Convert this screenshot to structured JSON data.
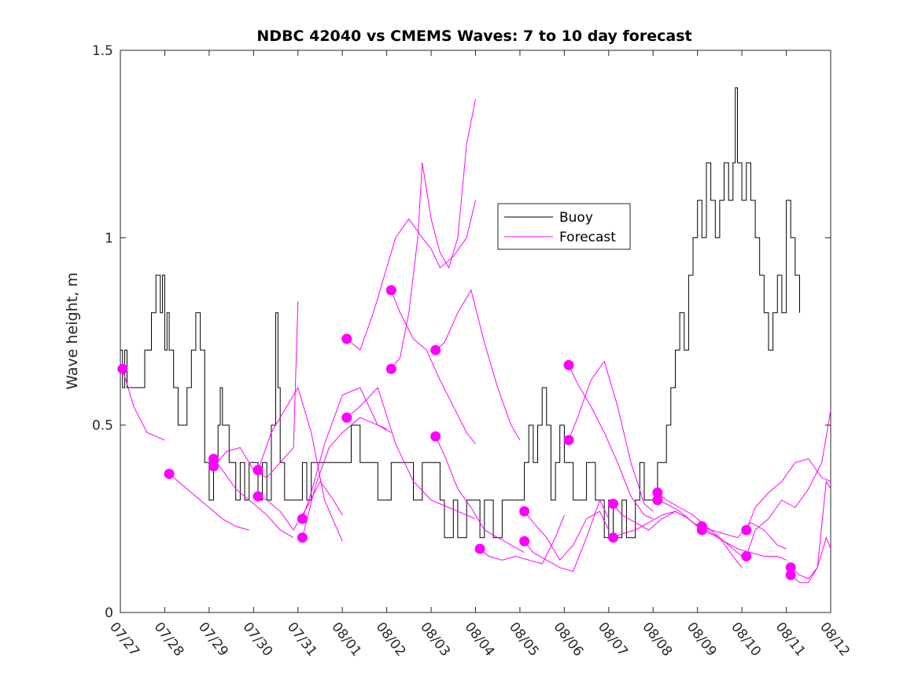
{
  "chart_data": {
    "type": "line",
    "title": "NDBC 42040 vs CMEMS Waves: 7 to 10 day forecast",
    "xlabel": "",
    "ylabel": "Wave height, m",
    "ylim": [
      0,
      1.5
    ],
    "xlim": [
      0,
      16
    ],
    "x_unit": "days from 07/27",
    "x_ticks": [
      0,
      1,
      2,
      3,
      4,
      5,
      6,
      7,
      8,
      9,
      10,
      11,
      12,
      13,
      14,
      15,
      16
    ],
    "x_tick_labels": [
      "07/27",
      "07/28",
      "07/29",
      "07/30",
      "07/31",
      "08/01",
      "08/02",
      "08/03",
      "08/04",
      "08/05",
      "08/06",
      "08/07",
      "08/08",
      "08/09",
      "08/10",
      "08/11",
      "08/12"
    ],
    "y_ticks": [
      0,
      0.5,
      1,
      1.5
    ],
    "y_tick_labels": [
      "0",
      "0.5",
      "1",
      "1.5"
    ],
    "grid": false,
    "legend": {
      "position": "top-center",
      "entries": [
        "Buoy",
        "Forecast"
      ]
    },
    "colors": {
      "buoy": "#000000",
      "forecast": "#ff00ff",
      "axis": "#262626"
    },
    "series": [
      {
        "name": "Buoy",
        "style": "step",
        "x": [
          0,
          0.05,
          0.1,
          0.15,
          0.2,
          0.4,
          0.5,
          0.55,
          0.6,
          0.7,
          0.8,
          0.9,
          0.95,
          1.0,
          1.05,
          1.1,
          1.2,
          1.3,
          1.4,
          1.45,
          1.5,
          1.6,
          1.7,
          1.8,
          1.9,
          2.0,
          2.1,
          2.2,
          2.25,
          2.3,
          2.4,
          2.45,
          2.5,
          2.6,
          2.7,
          2.8,
          2.9,
          3.0,
          3.1,
          3.2,
          3.3,
          3.4,
          3.5,
          3.55,
          3.6,
          3.7,
          3.8,
          3.9,
          4.0,
          4.1,
          4.2,
          4.3,
          4.4,
          4.5,
          4.8,
          5.0,
          5.2,
          5.4,
          5.6,
          5.8,
          6.0,
          6.1,
          6.3,
          6.5,
          6.6,
          6.8,
          7.0,
          7.2,
          7.3,
          7.5,
          7.6,
          7.8,
          8.0,
          8.1,
          8.2,
          8.4,
          8.6,
          8.8,
          9.0,
          9.1,
          9.2,
          9.3,
          9.4,
          9.5,
          9.6,
          9.7,
          9.8,
          9.9,
          10.0,
          10.1,
          10.2,
          10.3,
          10.5,
          10.7,
          10.9,
          11.0,
          11.1,
          11.2,
          11.3,
          11.4,
          11.5,
          11.6,
          11.7,
          11.8,
          11.9,
          12.0,
          12.1,
          12.2,
          12.3,
          12.4,
          12.5,
          12.6,
          12.7,
          12.8,
          12.9,
          13.0,
          13.1,
          13.2,
          13.3,
          13.4,
          13.5,
          13.6,
          13.7,
          13.8,
          13.85,
          13.9,
          14.0,
          14.1,
          14.2,
          14.3,
          14.4,
          14.5,
          14.6,
          14.7,
          14.8,
          14.9,
          15.0,
          15.1,
          15.2,
          15.3
        ],
        "values": [
          0.7,
          0.6,
          0.7,
          0.6,
          0.6,
          0.6,
          0.6,
          0.7,
          0.7,
          0.8,
          0.9,
          0.8,
          0.9,
          0.7,
          0.8,
          0.7,
          0.6,
          0.5,
          0.5,
          0.5,
          0.6,
          0.7,
          0.8,
          0.7,
          0.4,
          0.3,
          0.4,
          0.5,
          0.6,
          0.5,
          0.5,
          0.4,
          0.4,
          0.3,
          0.4,
          0.3,
          0.4,
          0.4,
          0.3,
          0.4,
          0.3,
          0.5,
          0.8,
          0.6,
          0.4,
          0.3,
          0.3,
          0.3,
          0.3,
          0.4,
          0.3,
          0.4,
          0.4,
          0.4,
          0.4,
          0.4,
          0.5,
          0.4,
          0.4,
          0.3,
          0.3,
          0.4,
          0.4,
          0.4,
          0.3,
          0.4,
          0.4,
          0.3,
          0.2,
          0.3,
          0.2,
          0.3,
          0.3,
          0.2,
          0.3,
          0.2,
          0.3,
          0.3,
          0.3,
          0.4,
          0.5,
          0.4,
          0.5,
          0.6,
          0.5,
          0.3,
          0.4,
          0.5,
          0.4,
          0.4,
          0.3,
          0.3,
          0.4,
          0.3,
          0.2,
          0.3,
          0.2,
          0.2,
          0.3,
          0.2,
          0.2,
          0.3,
          0.4,
          0.3,
          0.3,
          0.3,
          0.4,
          0.4,
          0.5,
          0.6,
          0.7,
          0.8,
          0.7,
          0.9,
          1.0,
          1.1,
          1.0,
          1.2,
          1.1,
          1.0,
          1.1,
          1.2,
          1.1,
          1.2,
          1.4,
          1.2,
          1.1,
          1.2,
          1.1,
          1.0,
          0.9,
          0.8,
          0.7,
          0.8,
          0.9,
          0.8,
          1.1,
          1.0,
          0.9,
          0.8
        ]
      },
      {
        "name": "Forecast",
        "start_marker": true,
        "x": [
          0.05,
          0.3,
          0.6,
          0.8,
          1.0
        ],
        "values": [
          0.65,
          0.55,
          0.48,
          0.47,
          0.46
        ]
      },
      {
        "name": "Forecast",
        "start_marker": true,
        "x": [
          1.1,
          1.4,
          1.7,
          2.0,
          2.3,
          2.6,
          2.9
        ],
        "values": [
          0.37,
          0.34,
          0.31,
          0.28,
          0.25,
          0.23,
          0.22
        ]
      },
      {
        "name": "Forecast",
        "start_marker": true,
        "x": [
          2.1,
          2.3,
          2.6,
          2.9,
          3.1,
          3.3,
          3.6,
          3.9
        ],
        "values": [
          0.41,
          0.38,
          0.33,
          0.3,
          0.28,
          0.26,
          0.22,
          0.2
        ]
      },
      {
        "name": "Forecast",
        "start_marker": true,
        "x": [
          2.1,
          2.4,
          2.7,
          3.0,
          3.3,
          3.6,
          3.9,
          4.0
        ],
        "values": [
          0.39,
          0.43,
          0.44,
          0.38,
          0.36,
          0.4,
          0.44,
          0.83
        ]
      },
      {
        "name": "Forecast",
        "start_marker": true,
        "x": [
          3.1,
          3.4,
          3.7,
          4.0,
          4.3,
          4.6,
          5.0
        ],
        "values": [
          0.38,
          0.48,
          0.54,
          0.6,
          0.48,
          0.3,
          0.19
        ]
      },
      {
        "name": "Forecast",
        "start_marker": true,
        "x": [
          3.1,
          3.3,
          3.6,
          3.9,
          4.2,
          4.5,
          4.8,
          5.0
        ],
        "values": [
          0.31,
          0.3,
          0.27,
          0.22,
          0.28,
          0.35,
          0.3,
          0.26
        ]
      },
      {
        "name": "Forecast",
        "start_marker": true,
        "x": [
          4.1,
          4.3,
          4.6,
          5.0,
          5.4,
          5.8,
          6.0
        ],
        "values": [
          0.25,
          0.32,
          0.45,
          0.58,
          0.6,
          0.5,
          0.49
        ]
      },
      {
        "name": "Forecast",
        "start_marker": true,
        "x": [
          4.1,
          4.4,
          4.7,
          5.0,
          5.4,
          5.8,
          6.1
        ],
        "values": [
          0.2,
          0.34,
          0.44,
          0.48,
          0.52,
          0.5,
          0.48
        ]
      },
      {
        "name": "Forecast",
        "start_marker": true,
        "x": [
          5.1,
          5.4,
          5.7,
          6.0,
          6.2,
          6.5,
          6.8,
          7.0,
          7.2,
          7.5,
          7.8,
          8.0
        ],
        "values": [
          0.73,
          0.7,
          0.8,
          0.92,
          1.0,
          1.05,
          1.0,
          0.97,
          0.92,
          0.95,
          1.0,
          1.1
        ]
      },
      {
        "name": "Forecast",
        "start_marker": true,
        "x": [
          5.1,
          5.4,
          5.8,
          6.2,
          6.6,
          7.0,
          7.4,
          7.8,
          8.0
        ],
        "values": [
          0.52,
          0.55,
          0.6,
          0.45,
          0.35,
          0.3,
          0.28,
          0.26,
          0.25
        ]
      },
      {
        "name": "Forecast",
        "start_marker": true,
        "x": [
          6.1,
          6.3,
          6.6,
          6.9,
          7.2,
          7.5,
          7.8,
          8.0
        ],
        "values": [
          0.86,
          0.8,
          0.73,
          0.7,
          0.62,
          0.55,
          0.48,
          0.45
        ]
      },
      {
        "name": "Forecast",
        "start_marker": true,
        "x": [
          6.1,
          6.3,
          6.5,
          6.7,
          6.8,
          7.0,
          7.2,
          7.4,
          7.6,
          7.8,
          8.0
        ],
        "values": [
          0.65,
          0.68,
          0.8,
          1.0,
          1.2,
          1.05,
          0.96,
          0.92,
          1.0,
          1.25,
          1.37
        ]
      },
      {
        "name": "Forecast",
        "start_marker": true,
        "x": [
          7.1,
          7.3,
          7.6,
          7.9,
          8.2,
          8.5,
          8.8,
          9.0
        ],
        "values": [
          0.7,
          0.72,
          0.8,
          0.86,
          0.72,
          0.6,
          0.5,
          0.46
        ]
      },
      {
        "name": "Forecast",
        "start_marker": true,
        "x": [
          7.1,
          7.3,
          7.6,
          7.9,
          8.2,
          8.5,
          8.8,
          9.1
        ],
        "values": [
          0.47,
          0.42,
          0.33,
          0.28,
          0.22,
          0.2,
          0.18,
          0.16
        ]
      },
      {
        "name": "Forecast",
        "start_marker": true,
        "x": [
          8.1,
          8.3,
          8.6,
          8.9,
          9.2,
          9.5,
          9.8,
          10.0
        ],
        "values": [
          0.17,
          0.15,
          0.14,
          0.15,
          0.14,
          0.13,
          0.2,
          0.26
        ]
      },
      {
        "name": "Forecast",
        "start_marker": true,
        "x": [
          9.1,
          9.3,
          9.6,
          9.9,
          10.2,
          10.5,
          10.8,
          11.0
        ],
        "values": [
          0.27,
          0.24,
          0.2,
          0.14,
          0.18,
          0.25,
          0.27,
          0.22
        ]
      },
      {
        "name": "Forecast",
        "start_marker": true,
        "x": [
          9.1,
          9.3,
          9.6,
          9.9,
          10.2,
          10.5,
          10.8,
          11.0
        ],
        "values": [
          0.19,
          0.16,
          0.14,
          0.12,
          0.11,
          0.2,
          0.3,
          0.25
        ]
      },
      {
        "name": "Forecast",
        "start_marker": true,
        "x": [
          10.1,
          10.3,
          10.6,
          10.9,
          11.2,
          11.5,
          11.8,
          12.0
        ],
        "values": [
          0.66,
          0.61,
          0.55,
          0.48,
          0.4,
          0.31,
          0.26,
          0.25
        ]
      },
      {
        "name": "Forecast",
        "start_marker": true,
        "x": [
          10.1,
          10.3,
          10.6,
          10.9,
          11.2,
          11.5,
          11.8,
          12.0
        ],
        "values": [
          0.46,
          0.52,
          0.62,
          0.67,
          0.55,
          0.4,
          0.29,
          0.27
        ]
      },
      {
        "name": "Forecast",
        "start_marker": true,
        "x": [
          11.1,
          11.3,
          11.6,
          11.9,
          12.2,
          12.5,
          12.8,
          13.0
        ],
        "values": [
          0.29,
          0.26,
          0.24,
          0.22,
          0.25,
          0.27,
          0.25,
          0.23
        ]
      },
      {
        "name": "Forecast",
        "start_marker": true,
        "x": [
          11.1,
          11.3,
          11.6,
          11.9,
          12.2,
          12.5,
          12.8,
          13.1
        ],
        "values": [
          0.2,
          0.21,
          0.22,
          0.24,
          0.26,
          0.27,
          0.25,
          0.22
        ]
      },
      {
        "name": "Forecast",
        "start_marker": true,
        "x": [
          12.1,
          12.3,
          12.6,
          12.9,
          13.2,
          13.5,
          13.8,
          14.0
        ],
        "values": [
          0.32,
          0.3,
          0.28,
          0.26,
          0.23,
          0.2,
          0.17,
          0.15
        ]
      },
      {
        "name": "Forecast",
        "start_marker": true,
        "x": [
          12.1,
          12.3,
          12.6,
          12.9,
          13.2,
          13.5,
          13.8,
          14.0
        ],
        "values": [
          0.3,
          0.29,
          0.27,
          0.24,
          0.22,
          0.2,
          0.15,
          0.12
        ]
      },
      {
        "name": "Forecast",
        "start_marker": true,
        "x": [
          13.1,
          13.3,
          13.6,
          13.9,
          14.2,
          14.5,
          14.8,
          15.0
        ],
        "values": [
          0.23,
          0.22,
          0.21,
          0.2,
          0.24,
          0.22,
          0.18,
          0.17
        ]
      },
      {
        "name": "Forecast",
        "start_marker": true,
        "x": [
          13.1,
          13.3,
          13.6,
          13.9,
          14.2,
          14.5,
          14.8,
          15.0
        ],
        "values": [
          0.22,
          0.21,
          0.19,
          0.17,
          0.16,
          0.15,
          0.15,
          0.14
        ]
      },
      {
        "name": "Forecast",
        "start_marker": true,
        "x": [
          14.1,
          14.3,
          14.6,
          14.9,
          15.2,
          15.5,
          15.8,
          16.0
        ],
        "values": [
          0.22,
          0.28,
          0.32,
          0.35,
          0.4,
          0.41,
          0.36,
          0.35
        ]
      },
      {
        "name": "Forecast",
        "start_marker": true,
        "x": [
          14.1,
          14.3,
          14.6,
          14.9,
          15.2,
          15.5,
          15.8,
          16.0
        ],
        "values": [
          0.15,
          0.22,
          0.25,
          0.3,
          0.28,
          0.33,
          0.4,
          0.54
        ]
      },
      {
        "name": "Forecast",
        "start_marker": true,
        "x": [
          15.1,
          15.3,
          15.5,
          15.7,
          15.9,
          16.0
        ],
        "values": [
          0.12,
          0.1,
          0.09,
          0.12,
          0.2,
          0.17
        ]
      },
      {
        "name": "Forecast",
        "start_marker": true,
        "x": [
          15.1,
          15.3,
          15.5,
          15.7,
          15.9,
          16.0
        ],
        "values": [
          0.1,
          0.08,
          0.08,
          0.12,
          0.35,
          0.33
        ]
      }
    ]
  }
}
